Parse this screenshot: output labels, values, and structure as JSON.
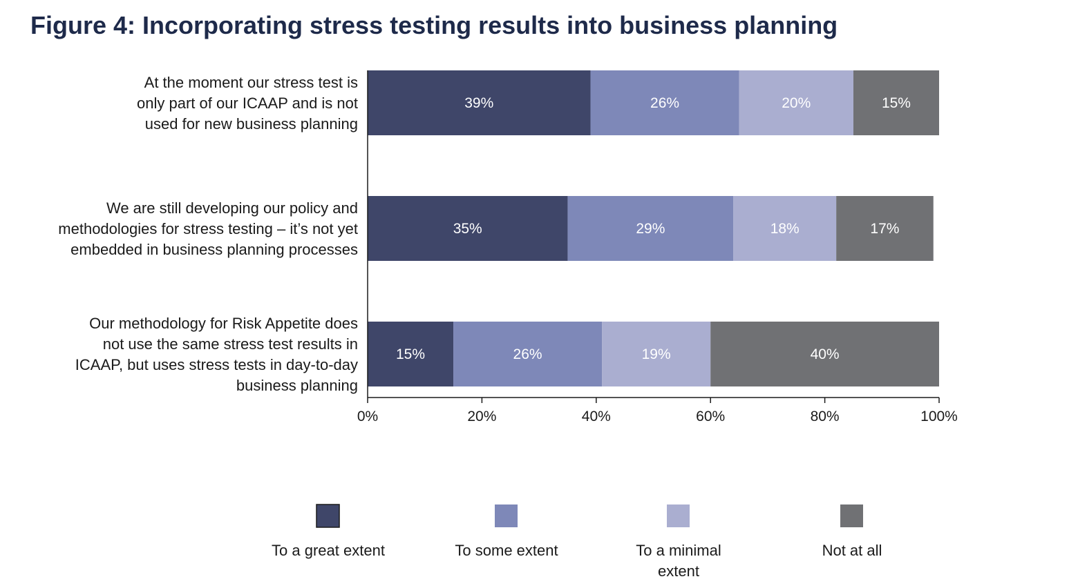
{
  "title": "Figure 4: Incorporating stress testing results into business planning",
  "chart_data": {
    "type": "bar",
    "orientation": "horizontal",
    "stacked": true,
    "title": "Figure 4: Incorporating stress testing results into business planning",
    "categories": [
      [
        "At the moment our stress test is",
        "only part of our ICAAP and is not",
        "used for new business planning"
      ],
      [
        "We are still developing our policy and",
        "methodologies for stress testing – it’s not yet",
        "embedded in business planning processes"
      ],
      [
        "Our methodology for Risk Appetite does",
        "not use the same stress test results in",
        "ICAAP, but uses stress tests in day-to-day",
        "business planning"
      ]
    ],
    "series": [
      {
        "name": "To a great extent",
        "color": "#3f4669",
        "values": [
          39,
          35,
          15
        ]
      },
      {
        "name": "To some extent",
        "color": "#7e88b8",
        "values": [
          26,
          29,
          26
        ]
      },
      {
        "name": "To a minimal extent",
        "legend_lines": [
          "To a minimal",
          "extent"
        ],
        "color": "#aaaed0",
        "values": [
          20,
          18,
          19
        ]
      },
      {
        "name": "Not at all",
        "color": "#707174",
        "values": [
          15,
          17,
          40
        ]
      }
    ],
    "xlim": [
      0,
      100
    ],
    "x_ticks": [
      "0%",
      "20%",
      "40%",
      "60%",
      "80%",
      "100%"
    ],
    "value_suffix": "%",
    "grid": false,
    "legend_position": "bottom"
  }
}
